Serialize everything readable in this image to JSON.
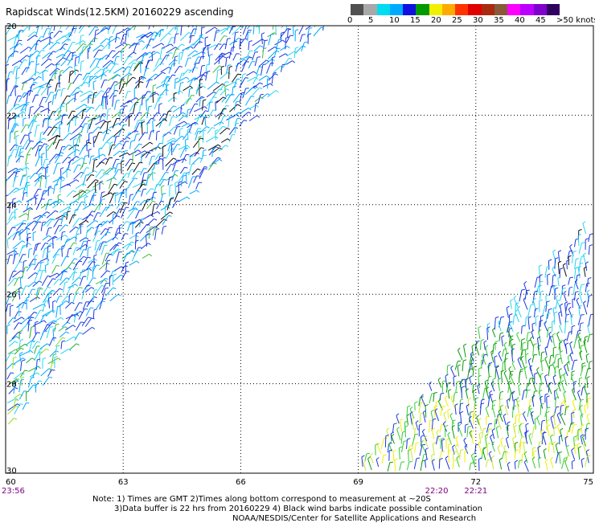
{
  "title": "Rapidscat Winds(12.5KM) 20160229 ascending",
  "speed_scale": {
    "labels": [
      "0",
      "5",
      "10",
      "15",
      "20",
      "25",
      "30",
      "35",
      "40",
      "45",
      ">50 knots"
    ],
    "colors": [
      "#505050",
      "#a8a8a8",
      "#00dcf0",
      "#00aaff",
      "#1010e0",
      "#009a00",
      "#f0f000",
      "#ffaa00",
      "#ff3300",
      "#e00000",
      "#aa2a10",
      "#885a3a",
      "#ff00ff",
      "#bb00ff",
      "#8000cc",
      "#300060"
    ]
  },
  "chart_data": {
    "type": "wind-barb-map",
    "title": "Rapidscat Winds(12.5KM) 20160229 ascending",
    "x_axis": {
      "label": "",
      "range": [
        60,
        75
      ],
      "ticks": [
        "60",
        "63",
        "66",
        "69",
        "72",
        "75"
      ]
    },
    "y_axis": {
      "label": "",
      "range": [
        -30,
        -20
      ],
      "ticks": [
        {
          "value": -20,
          "label": "20"
        },
        {
          "value": -22,
          "label": "22"
        },
        {
          "value": -24,
          "label": "24"
        },
        {
          "value": -26,
          "label": "26"
        },
        {
          "value": -28,
          "label": "28"
        },
        {
          "value": -30,
          "label": "30"
        }
      ]
    },
    "grid": true,
    "grid_style": "dotted",
    "time_labels": [
      {
        "lon": 60,
        "text": "23:56"
      },
      {
        "lon": 71,
        "text": "22:20"
      },
      {
        "lon": 72,
        "text": "22:21"
      }
    ],
    "swaths": [
      {
        "name": "west",
        "time": "23:56",
        "polygon_lonlat": [
          [
            60,
            -20
          ],
          [
            68.1,
            -20
          ],
          [
            60,
            -29.1
          ]
        ],
        "dominant_speed_knots": "5-15",
        "direction": "from SE"
      },
      {
        "name": "east",
        "time": "22:20-22:21",
        "polygon_lonlat": [
          [
            68.8,
            -30
          ],
          [
            75,
            -24.4
          ],
          [
            75,
            -30
          ]
        ],
        "dominant_speed_knots": "10-25",
        "direction": "from S"
      }
    ]
  },
  "notes": {
    "line1": "Note: 1) Times are GMT 2)Times along bottom correspond to measurement at ~20S",
    "line2": "3)Data buffer is 22 hrs from 20160229 4) Black wind barbs indicate possible contamination",
    "line3": "NOAA/NESDIS/Center for Satellite Applications and Research"
  },
  "time_label_color": "#800080"
}
